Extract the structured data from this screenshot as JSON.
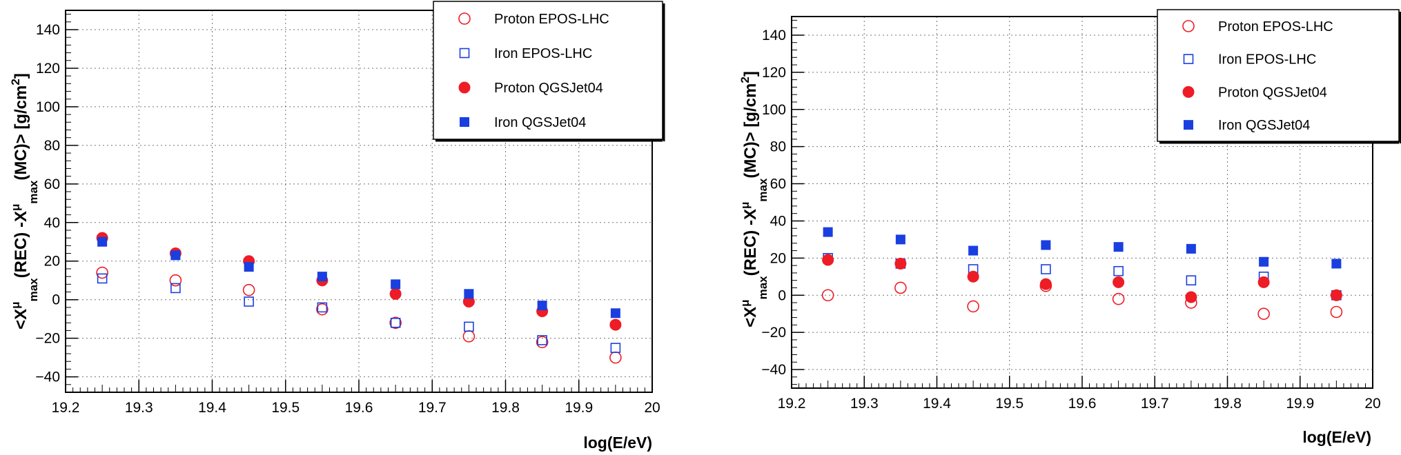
{
  "chart_data": [
    {
      "type": "scatter",
      "title": "",
      "xlabel": "log(E/eV)",
      "ylabel": {
        "prefix": "<X",
        "sup": "μ",
        "sub": "max",
        "mid": "(REC) -X",
        "sup2": "μ",
        "sub2": "max",
        "suffix": "(MC)> [g/cm",
        "sup3": "2",
        "end": "]"
      },
      "xlim": [
        19.2,
        20.0
      ],
      "ylim": [
        -48,
        150
      ],
      "xticks": [
        19.2,
        19.3,
        19.4,
        19.5,
        19.6,
        19.7,
        19.8,
        19.9,
        20
      ],
      "xtick_labels": [
        "19.2",
        "19.3",
        "19.4",
        "19.5",
        "19.6",
        "19.7",
        "19.8",
        "19.9",
        "20"
      ],
      "yticks": [
        -40,
        -20,
        0,
        20,
        40,
        60,
        80,
        100,
        120,
        140
      ],
      "ytick_labels": [
        "−40",
        "−20",
        "0",
        "20",
        "40",
        "60",
        "80",
        "100",
        "120",
        "140"
      ],
      "grid": true,
      "legend_position": "top-right",
      "x": [
        19.25,
        19.35,
        19.45,
        19.55,
        19.65,
        19.75,
        19.85,
        19.95
      ],
      "series": [
        {
          "name": "Proton EPOS-LHC",
          "marker": "open-circle",
          "color": "#ee1c25",
          "values": [
            14,
            10,
            5,
            -5,
            -12,
            -19,
            -22,
            -30
          ]
        },
        {
          "name": "Iron EPOS-LHC",
          "marker": "open-square",
          "color": "#1a3fe0",
          "values": [
            11,
            6,
            -1,
            -4,
            -12,
            -14,
            -21,
            -25
          ]
        },
        {
          "name": "Proton QGSJet04",
          "marker": "filled-circle",
          "color": "#ee1c25",
          "values": [
            32,
            24,
            20,
            10,
            3,
            -1,
            -6,
            -13
          ]
        },
        {
          "name": "Iron QGSJet04",
          "marker": "filled-square",
          "color": "#1a3fe0",
          "values": [
            30,
            23,
            17,
            12,
            8,
            3,
            -3,
            -7
          ]
        }
      ]
    },
    {
      "type": "scatter",
      "title": "",
      "xlabel": "log(E/eV)",
      "ylabel": {
        "prefix": "<X",
        "sup": "μ",
        "sub": "max",
        "mid": "(REC) -X",
        "sup2": "μ",
        "sub2": "max",
        "suffix": "(MC)> [g/cm",
        "sup3": "2",
        "end": "]"
      },
      "xlim": [
        19.2,
        20.0
      ],
      "ylim": [
        -50,
        150
      ],
      "xticks": [
        19.2,
        19.3,
        19.4,
        19.5,
        19.6,
        19.7,
        19.8,
        19.9,
        20
      ],
      "xtick_labels": [
        "19.2",
        "19.3",
        "19.4",
        "19.5",
        "19.6",
        "19.7",
        "19.8",
        "19.9",
        "20"
      ],
      "yticks": [
        -40,
        -20,
        0,
        20,
        40,
        60,
        80,
        100,
        120,
        140
      ],
      "ytick_labels": [
        "−40",
        "−20",
        "0",
        "20",
        "40",
        "60",
        "80",
        "100",
        "120",
        "140"
      ],
      "grid": true,
      "legend_position": "top-right",
      "x": [
        19.25,
        19.35,
        19.45,
        19.55,
        19.65,
        19.75,
        19.85,
        19.95
      ],
      "series": [
        {
          "name": "Proton EPOS-LHC",
          "marker": "open-circle",
          "color": "#ee1c25",
          "values": [
            0,
            4,
            -6,
            5,
            -2,
            -4,
            -10,
            -9
          ]
        },
        {
          "name": "Iron EPOS-LHC",
          "marker": "open-square",
          "color": "#1a3fe0",
          "values": [
            20,
            17,
            14,
            14,
            13,
            8,
            10,
            0
          ]
        },
        {
          "name": "Proton QGSJet04",
          "marker": "filled-circle",
          "color": "#ee1c25",
          "values": [
            19,
            17,
            10,
            6,
            7,
            -1,
            7,
            0
          ]
        },
        {
          "name": "Iron QGSJet04",
          "marker": "filled-square",
          "color": "#1a3fe0",
          "values": [
            34,
            30,
            24,
            27,
            26,
            25,
            18,
            17
          ]
        }
      ]
    }
  ]
}
